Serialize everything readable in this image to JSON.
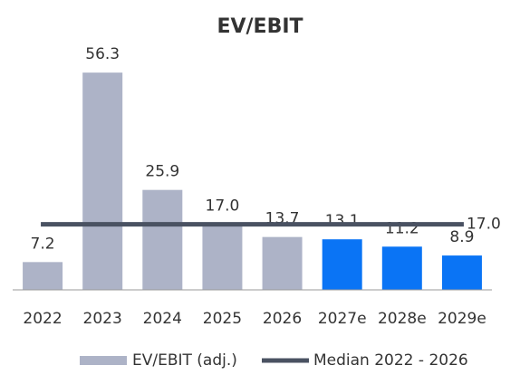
{
  "chart_data": {
    "type": "bar",
    "title": "EV/EBIT",
    "categories": [
      "2022",
      "2023",
      "2024",
      "2025",
      "2026",
      "2027e",
      "2028e",
      "2029e"
    ],
    "series": [
      {
        "name": "EV/EBIT (adj.)",
        "color": "#adb3c7",
        "colors": [
          "#adb3c7",
          "#adb3c7",
          "#adb3c7",
          "#adb3c7",
          "#adb3c7",
          "#0a74f5",
          "#0a74f5",
          "#0a74f5"
        ],
        "values": [
          7.2,
          56.3,
          25.9,
          17.0,
          13.7,
          13.1,
          11.2,
          8.9
        ],
        "value_labels": [
          "7.2",
          "56.3",
          "25.9",
          "17.0",
          "13.7",
          "13.1",
          "11.2",
          "8.9"
        ]
      }
    ],
    "median": {
      "name": "Median 2022 - 2026",
      "color": "#4a5262",
      "value": 17.0,
      "value_label": "17.0"
    },
    "ylim": [
      0,
      60
    ]
  }
}
